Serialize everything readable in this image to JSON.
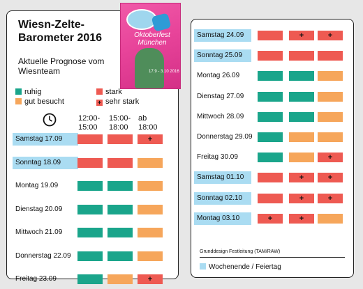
{
  "title": "Wiesn-Zelte-Barometer 2016",
  "subtitle": "Aktuelle Prognose vom Wiesnteam",
  "poster": {
    "title_text": "Oktoberfest München",
    "dates": "17.9 - 3.10 2016"
  },
  "legend": {
    "ruhig": "ruhig",
    "stark": "stark",
    "gut": "gut besucht",
    "sehr": "sehr stark",
    "sehr_symbol": "+"
  },
  "colors": {
    "ruhig": "#1aa58b",
    "gut": "#f6a65b",
    "stark": "#ee5a52",
    "sehr": "#ee5a52",
    "holiday": "#aadcf2"
  },
  "time_headers": [
    "12:00-\n15:00",
    "15:00-\n18:00",
    "ab\n18:00"
  ],
  "left_days": [
    {
      "label": "Samstag 17.09",
      "holiday": true,
      "slots": [
        "stark",
        "stark",
        "sehr"
      ]
    },
    {
      "label": "Sonntag 18.09",
      "holiday": true,
      "slots": [
        "stark",
        "stark",
        "gut"
      ]
    },
    {
      "label": "Montag 19.09",
      "holiday": false,
      "slots": [
        "ruhig",
        "ruhig",
        "gut"
      ]
    },
    {
      "label": "Dienstag 20.09",
      "holiday": false,
      "slots": [
        "ruhig",
        "ruhig",
        "gut"
      ]
    },
    {
      "label": "Mittwoch 21.09",
      "holiday": false,
      "slots": [
        "ruhig",
        "ruhig",
        "gut"
      ]
    },
    {
      "label": "Donnerstag 22.09",
      "holiday": false,
      "slots": [
        "ruhig",
        "ruhig",
        "gut"
      ]
    },
    {
      "label": "Freitag 23.09",
      "holiday": false,
      "slots": [
        "ruhig",
        "gut",
        "sehr"
      ]
    }
  ],
  "right_days": [
    {
      "label": "Samstag 24.09",
      "holiday": true,
      "slots": [
        "stark",
        "sehr",
        "sehr"
      ]
    },
    {
      "label": "Sonntag 25.09",
      "holiday": true,
      "slots": [
        "stark",
        "stark",
        "stark"
      ]
    },
    {
      "label": "Montag 26.09",
      "holiday": false,
      "slots": [
        "ruhig",
        "ruhig",
        "gut"
      ]
    },
    {
      "label": "Dienstag 27.09",
      "holiday": false,
      "slots": [
        "ruhig",
        "ruhig",
        "gut"
      ]
    },
    {
      "label": "Mittwoch 28.09",
      "holiday": false,
      "slots": [
        "ruhig",
        "ruhig",
        "gut"
      ]
    },
    {
      "label": "Donnerstag 29.09",
      "holiday": false,
      "slots": [
        "ruhig",
        "gut",
        "gut"
      ]
    },
    {
      "label": "Freitag 30.09",
      "holiday": false,
      "slots": [
        "ruhig",
        "gut",
        "sehr"
      ]
    },
    {
      "label": "Samstag 01.10",
      "holiday": true,
      "slots": [
        "stark",
        "sehr",
        "sehr"
      ]
    },
    {
      "label": "Sonntag 02.10",
      "holiday": true,
      "slots": [
        "stark",
        "sehr",
        "sehr"
      ]
    },
    {
      "label": "Montag 03.10",
      "holiday": true,
      "slots": [
        "sehr",
        "sehr",
        "gut"
      ]
    }
  ],
  "credit": "Grunddesign Festleitung (TAM/RAW)",
  "footer_legend": "Wochenende / Feiertag"
}
